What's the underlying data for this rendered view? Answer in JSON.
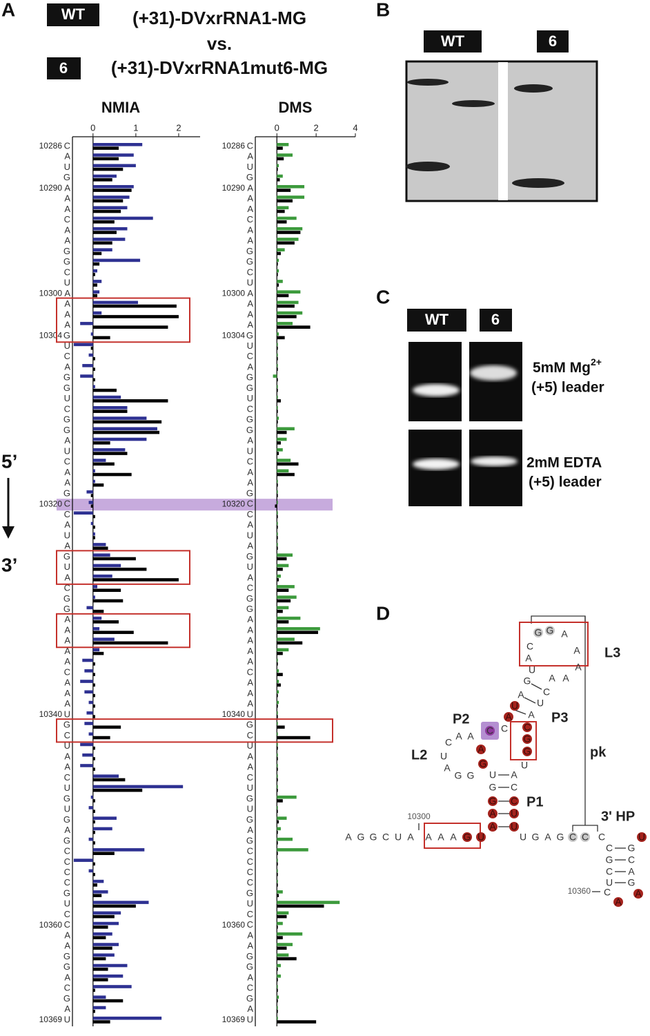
{
  "panel_a": {
    "label": "A",
    "legend": [
      {
        "badge": "WT",
        "name": "(+31)-DVxrRNA1-MG"
      },
      {
        "badge": "6",
        "name": "(+31)-DVxrRNA1mut6-MG"
      }
    ],
    "vs": "vs.",
    "direction": {
      "start": "5’",
      "end": "3’"
    },
    "sequence": [
      "C",
      "A",
      "U",
      "G",
      "A",
      "A",
      "A",
      "C",
      "A",
      "A",
      "G",
      "G",
      "C",
      "U",
      "A",
      "A",
      "A",
      "A",
      "G",
      "U",
      "C",
      "A",
      "G",
      "G",
      "U",
      "C",
      "G",
      "G",
      "A",
      "U",
      "C",
      "A",
      "A",
      "G",
      "C",
      "C",
      "A",
      "U",
      "A",
      "G",
      "U",
      "A",
      "C",
      "G",
      "G",
      "A",
      "A",
      "A",
      "A",
      "A",
      "C",
      "A",
      "A",
      "A",
      "U",
      "G",
      "C",
      "U",
      "A",
      "A",
      "C",
      "U",
      "G",
      "U",
      "G",
      "A",
      "G",
      "C",
      "C",
      "C",
      "C",
      "G",
      "U",
      "C",
      "C",
      "A",
      "A",
      "G",
      "G",
      "A",
      "C",
      "G",
      "A",
      "U"
    ],
    "positions": [
      10286,
      null,
      null,
      null,
      10290,
      null,
      null,
      null,
      null,
      null,
      null,
      null,
      null,
      null,
      10300,
      null,
      null,
      null,
      10304,
      null,
      null,
      null,
      null,
      null,
      null,
      null,
      null,
      null,
      null,
      null,
      null,
      null,
      null,
      null,
      10320,
      null,
      null,
      null,
      null,
      null,
      null,
      null,
      null,
      null,
      null,
      null,
      null,
      null,
      null,
      null,
      null,
      null,
      null,
      null,
      10340,
      null,
      null,
      null,
      null,
      null,
      null,
      null,
      null,
      null,
      null,
      null,
      null,
      null,
      null,
      null,
      null,
      null,
      null,
      null,
      10360,
      null,
      null,
      null,
      null,
      null,
      null,
      null,
      null,
      10369
    ]
  },
  "chart_data": [
    {
      "type": "bar",
      "title": "NMIA",
      "xlim": [
        -0.48,
        2.5
      ],
      "xticks": [
        0,
        1,
        2
      ],
      "series": [
        {
          "color": "#2e3192",
          "values": [
            1.15,
            0.95,
            1.0,
            0.55,
            0.95,
            0.85,
            0.8,
            1.4,
            0.8,
            0.75,
            0.45,
            1.1,
            0.1,
            0.2,
            0.15,
            1.05,
            0.2,
            -0.3,
            -0.05,
            -0.45,
            -0.1,
            -0.25,
            -0.3,
            0.05,
            0.65,
            0.8,
            1.25,
            1.5,
            1.25,
            0.75,
            0.3,
            0.05,
            0.05,
            -0.15,
            -0.1,
            -0.45,
            -0.05,
            0.05,
            0.3,
            0.4,
            0.65,
            0.45,
            0.1,
            0.05,
            -0.15,
            0.2,
            0.15,
            0.5,
            0.15,
            -0.25,
            -0.2,
            -0.3,
            -0.2,
            -0.1,
            -0.15,
            -0.2,
            -0.1,
            -0.3,
            -0.25,
            -0.3,
            0.6,
            2.1,
            -0.05,
            -0.1,
            0.55,
            0.45,
            -0.1,
            1.2,
            -0.45,
            -0.1,
            0.25,
            0.35,
            1.3,
            0.65,
            0.6,
            0.45,
            0.6,
            0.5,
            0.8,
            0.7,
            0.9,
            0.3,
            0.3,
            1.6
          ]
        },
        {
          "color": "#000000",
          "values": [
            0.6,
            0.6,
            0.7,
            0.45,
            0.9,
            0.7,
            0.65,
            0.5,
            0.55,
            0.45,
            0.2,
            0.15,
            0.05,
            0.1,
            0.1,
            1.95,
            2.0,
            1.75,
            0.4,
            -0.05,
            0.05,
            0.05,
            0.05,
            0.55,
            1.75,
            0.8,
            1.6,
            1.55,
            0.4,
            0.8,
            0.5,
            0.9,
            0.25,
            -0.05,
            -0.05,
            0.05,
            0.05,
            0.05,
            0.35,
            1.0,
            1.25,
            2.0,
            0.65,
            0.7,
            0.25,
            0.6,
            0.95,
            1.75,
            0.25,
            0.05,
            0.05,
            0.05,
            0.05,
            0.05,
            0.05,
            0.65,
            0.4,
            0.05,
            0.05,
            0.05,
            0.75,
            1.15,
            0.05,
            0.05,
            0.05,
            0.05,
            0.05,
            0.5,
            0.05,
            0.05,
            0.1,
            0.2,
            1.0,
            0.5,
            0.35,
            0.3,
            0.45,
            0.3,
            0.35,
            0.35,
            0.05,
            0.7,
            0.05,
            0.4
          ]
        }
      ]
    },
    {
      "type": "bar",
      "title": "DMS",
      "xlim": [
        -1.1,
        4
      ],
      "xticks": [
        0,
        2,
        4
      ],
      "series": [
        {
          "color": "#3c9a3c",
          "values": [
            0.6,
            0.8,
            0.1,
            0.3,
            1.4,
            1.4,
            0.6,
            1.0,
            1.3,
            1.1,
            0.4,
            0.1,
            0.1,
            0.3,
            1.2,
            1.1,
            1.3,
            0.8,
            0.1,
            0.05,
            0.05,
            0.05,
            -0.2,
            0.05,
            0.05,
            0.05,
            0.1,
            0.9,
            0.5,
            0.3,
            0.7,
            0.6,
            0.05,
            0.05,
            0.05,
            0.05,
            0.05,
            0.05,
            0.05,
            0.8,
            0.6,
            0.2,
            0.9,
            1.0,
            0.6,
            1.2,
            2.2,
            0.9,
            0.6,
            0.05,
            0.1,
            0.1,
            0.1,
            0.1,
            0.05,
            0.05,
            0.05,
            0.05,
            0.05,
            0.05,
            0.05,
            0.05,
            1.0,
            0.05,
            0.5,
            0.2,
            0.8,
            1.6,
            0.05,
            0.05,
            0.05,
            0.3,
            3.2,
            0.6,
            0.3,
            1.3,
            0.8,
            0.6,
            0.2,
            0.2,
            0.05,
            0.1,
            0.05,
            0.05
          ]
        },
        {
          "color": "#000000",
          "values": [
            0.3,
            0.35,
            0.05,
            0.15,
            0.7,
            0.8,
            0.4,
            0.5,
            1.2,
            0.9,
            0.2,
            0.05,
            0.05,
            0.1,
            0.6,
            0.9,
            1.0,
            1.7,
            0.4,
            0.05,
            0.05,
            0.05,
            0.05,
            0.05,
            0.2,
            0.05,
            0.05,
            0.5,
            0.2,
            0.1,
            1.1,
            0.9,
            0.05,
            0.05,
            -0.1,
            0.05,
            0.05,
            0.05,
            0.05,
            0.5,
            0.3,
            0.1,
            0.6,
            0.7,
            0.3,
            0.6,
            2.1,
            1.3,
            0.3,
            0.05,
            0.3,
            0.2,
            0.05,
            0.05,
            0.05,
            0.4,
            1.7,
            0.05,
            0.05,
            0.05,
            0.05,
            0.05,
            0.3,
            0.05,
            0.1,
            0.05,
            0.05,
            0.05,
            0.05,
            0.05,
            0.05,
            0.1,
            2.4,
            0.5,
            0.05,
            0.3,
            0.5,
            1.0,
            0.05,
            0.05,
            0.05,
            0.05,
            0.05,
            2.0
          ]
        }
      ]
    }
  ],
  "panel_b": {
    "label": "B",
    "lanes": [
      "WT",
      "6"
    ]
  },
  "panel_c": {
    "label": "C",
    "lanes": [
      "WT",
      "6"
    ],
    "conditions": [
      {
        "text": "5mM Mg",
        "sup": "2+",
        "sub": "(+5) leader"
      },
      {
        "text": "2mM EDTA",
        "sub": "(+5) leader"
      }
    ]
  },
  "panel_d": {
    "label": "D",
    "labels": {
      "L3": "L3",
      "P3": "P3",
      "P2": "P2",
      "L2": "L2",
      "pk": "pk",
      "P1": "P1",
      "HP": "3' HP",
      "n1": "10300",
      "n2": "10360"
    },
    "letters": [
      "A",
      "G",
      "G",
      "C",
      "U",
      "A",
      "A",
      "A",
      "A",
      "G",
      "U",
      "A",
      "G",
      "G",
      "U",
      "A",
      "G",
      "C",
      "G",
      "C",
      "A",
      "U",
      "A",
      "U",
      "U",
      "G",
      "A",
      "G",
      "C",
      "C",
      "C",
      "U",
      "C",
      "A",
      "A",
      "A",
      "G",
      "C",
      "C",
      "A",
      "U",
      "C",
      "G",
      "G",
      "U",
      "A",
      "U",
      "C",
      "A",
      "G",
      "U",
      "A",
      "C",
      "G",
      "G",
      "A",
      "A",
      "A",
      "A",
      "A",
      "C",
      "G",
      "G",
      "C",
      "C",
      "A",
      "U",
      "G",
      "C",
      "A",
      "A",
      "U"
    ]
  }
}
